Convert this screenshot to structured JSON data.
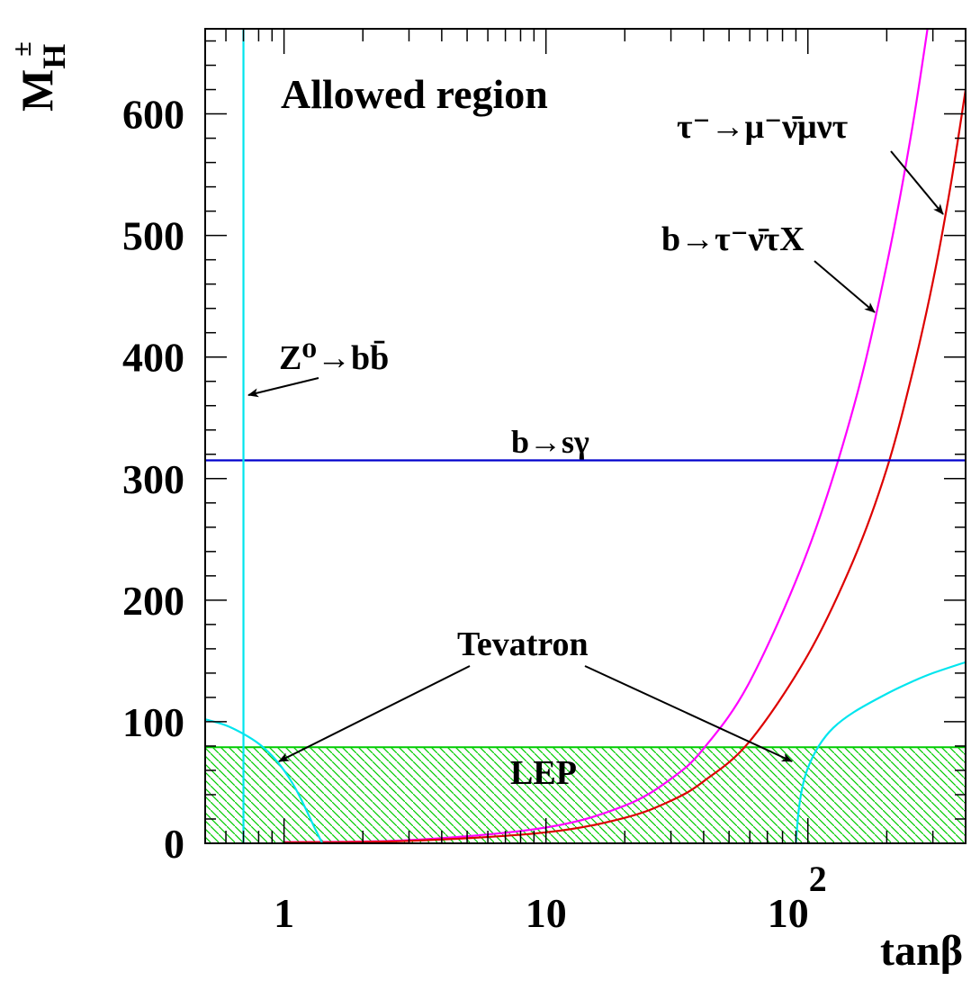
{
  "chart_data": {
    "type": "line",
    "title": "Allowed region",
    "xlabel": "tanβ",
    "ylabel": "M",
    "ylabel_sub": "H",
    "ylabel_sup": "±",
    "x_scale": "log",
    "xlim": [
      0.5,
      400
    ],
    "ylim": [
      0,
      670
    ],
    "x_ticks": [
      {
        "value": 1,
        "base": "1",
        "exp": ""
      },
      {
        "value": 10,
        "base": "10",
        "exp": ""
      },
      {
        "value": 100,
        "base": "10",
        "exp": "2"
      }
    ],
    "y_ticks": [
      0,
      100,
      200,
      300,
      400,
      500,
      600
    ],
    "grid": false,
    "series": [
      {
        "name": "τ⁻→μ⁻ν̄μντ",
        "color": "#ff00ff",
        "x": [
          1,
          3,
          10,
          20,
          30,
          40,
          60,
          100,
          150,
          200,
          250,
          300
        ],
        "y": [
          0.9,
          2.6,
          13,
          31,
          53,
          78,
          133,
          241,
          360,
          476,
          588,
          700
        ]
      },
      {
        "name": "b→τ⁻ν̄τX",
        "color": "#dd0000",
        "x": [
          1,
          3,
          10,
          20,
          30,
          40,
          60,
          100,
          150,
          200,
          250,
          300,
          350,
          400
        ],
        "y": [
          0.7,
          2,
          9,
          21,
          35,
          51,
          84,
          155,
          234,
          308,
          386,
          462,
          540,
          620
        ]
      },
      {
        "name": "b→sγ",
        "color": "#0000cc",
        "x": [
          0.5,
          400
        ],
        "y": [
          315,
          315
        ]
      },
      {
        "name": "Z⁰→bb̄",
        "color": "#00e5ee",
        "x": [
          0.7,
          0.7
        ],
        "y": [
          0,
          670
        ]
      },
      {
        "name": "Tevatron low tanβ",
        "color": "#00e5ee",
        "x": [
          0.5,
          0.6,
          0.7,
          0.8,
          0.9,
          1.0,
          1.1,
          1.2,
          1.3,
          1.4
        ],
        "y": [
          102,
          97,
          90,
          82,
          72,
          60,
          46,
          30,
          14,
          0
        ]
      },
      {
        "name": "Tevatron high tanβ",
        "color": "#00e5ee",
        "x": [
          90,
          92,
          95,
          100,
          110,
          125,
          150,
          200,
          250,
          300,
          400
        ],
        "y": [
          0,
          25,
          45,
          62,
          80,
          95,
          108,
          123,
          133,
          140,
          149
        ]
      }
    ],
    "band": {
      "name": "LEP",
      "ymin": 0,
      "ymax": 79,
      "color": "#00cc00"
    },
    "annotations": {
      "tau_mu_label": "τ⁻→μ⁻ν̄μντ",
      "b_tau_label": "b→τ⁻ν̄τX",
      "z_bb_label": "Z⁰→bb̄",
      "bsg_label": "b→sγ",
      "tevatron_label": "Tevatron",
      "lep_label": "LEP"
    }
  }
}
